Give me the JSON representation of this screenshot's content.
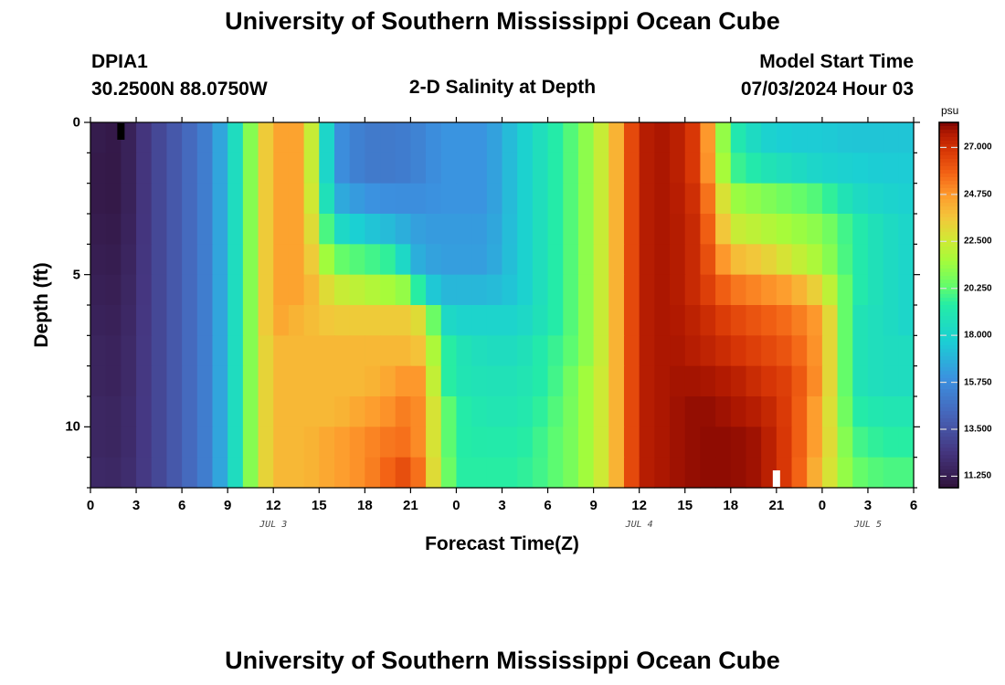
{
  "page": {
    "title": "University of Southern Mississippi Ocean Cube",
    "footer_title": "University of Southern Mississippi Ocean Cube",
    "station_name": "DPIA1",
    "station_coords": "30.2500N  88.0750W",
    "chart_title": "2-D Salinity at Depth",
    "model_start_label": "Model Start Time",
    "model_start_value": "07/03/2024 Hour 03"
  },
  "colors": {
    "background": "#ffffff",
    "axes": "#000000",
    "marker_dark": "#000000",
    "marker_light": "#ffffff"
  },
  "chart_data": {
    "type": "heatmap",
    "title": "2-D Salinity at Depth",
    "xlabel": "Forecast Time(Z)",
    "ylabel": "Depth (ft)",
    "colorbar_label": "psu",
    "x_ticks": [
      "0",
      "3",
      "6",
      "9",
      "12",
      "15",
      "18",
      "21",
      "0",
      "3",
      "6",
      "9",
      "12",
      "15",
      "18",
      "21",
      "0",
      "3",
      "6"
    ],
    "x_date_labels": [
      {
        "text": "JUL 3",
        "hour": 12
      },
      {
        "text": "JUL 4",
        "hour": 36
      },
      {
        "text": "JUL 5",
        "hour": 51
      }
    ],
    "y_ticks": [
      "0",
      "5",
      "10"
    ],
    "xlim_hours": [
      0,
      54
    ],
    "ylim_ft": [
      0,
      12
    ],
    "colorbar_ticks": [
      "27.000",
      "24.750",
      "22.500",
      "20.250",
      "18.000",
      "15.750",
      "13.500",
      "11.250"
    ],
    "colorbar_range": [
      10.7,
      28.2
    ],
    "depth_levels_ft": [
      0.5,
      1.5,
      2.5,
      3.5,
      4.5,
      5.5,
      6.5,
      7.5,
      8.5,
      9.5,
      10.5,
      11.5
    ],
    "markers": [
      {
        "hour": 2.0,
        "depth_ft": 0.3,
        "color": "dark"
      },
      {
        "hour": 45.0,
        "depth_ft": 11.7,
        "color": "light"
      }
    ],
    "salinity_psu": {
      "description_hours": [
        0,
        2,
        4,
        6,
        8,
        9,
        10,
        11,
        12,
        14,
        16,
        18,
        20,
        21,
        22,
        23,
        24,
        26,
        28,
        30,
        32,
        34,
        36,
        38,
        40,
        42,
        44,
        46,
        48,
        50,
        52,
        54
      ],
      "profiles": [
        [
          11.2,
          11.0,
          12.8,
          14.0,
          15.5,
          17.5,
          19.5,
          22.5,
          24.5,
          24.5,
          16.0,
          15.0,
          15.0,
          15.2,
          15.5,
          16.0,
          16.0,
          16.0,
          17.5,
          19.0,
          20.5,
          23.0,
          27.5,
          27.8,
          26.5,
          19.5,
          18.0,
          17.6,
          17.6,
          17.4,
          17.4,
          17.4
        ],
        [
          11.1,
          11.0,
          12.8,
          14.0,
          15.5,
          17.5,
          19.5,
          22.5,
          24.5,
          24.5,
          16.0,
          15.0,
          15.0,
          15.2,
          15.5,
          16.0,
          16.0,
          16.0,
          17.5,
          19.0,
          20.5,
          23.0,
          27.5,
          27.8,
          26.5,
          20.0,
          19.0,
          18.5,
          18.0,
          17.8,
          17.6,
          17.6
        ],
        [
          11.1,
          11.0,
          12.8,
          14.0,
          15.5,
          17.5,
          19.5,
          22.5,
          24.5,
          24.5,
          16.8,
          16.0,
          15.8,
          15.8,
          15.8,
          16.0,
          16.0,
          16.0,
          17.5,
          19.0,
          20.5,
          23.0,
          27.5,
          27.8,
          26.8,
          21.5,
          21.0,
          20.5,
          20.0,
          18.5,
          18.0,
          17.8
        ],
        [
          11.2,
          11.1,
          12.8,
          14.0,
          15.5,
          17.5,
          19.5,
          22.5,
          24.5,
          24.5,
          18.5,
          17.5,
          17.0,
          16.5,
          16.2,
          16.2,
          16.2,
          16.2,
          17.5,
          19.0,
          20.5,
          23.0,
          27.5,
          27.8,
          27.0,
          22.5,
          22.0,
          21.5,
          21.0,
          19.5,
          18.5,
          18.0
        ],
        [
          11.3,
          11.2,
          12.8,
          14.0,
          15.5,
          17.5,
          19.5,
          22.5,
          24.5,
          24.5,
          20.5,
          20.0,
          19.5,
          17.0,
          16.5,
          16.3,
          16.3,
          16.3,
          17.5,
          19.0,
          20.5,
          23.0,
          27.5,
          27.8,
          27.0,
          24.0,
          23.5,
          22.5,
          21.5,
          19.5,
          18.5,
          18.0
        ],
        [
          11.4,
          11.3,
          12.8,
          14.0,
          15.5,
          17.5,
          19.5,
          22.5,
          24.5,
          24.5,
          22.5,
          22.0,
          21.5,
          21.0,
          18.0,
          17.0,
          17.0,
          17.0,
          17.5,
          19.0,
          20.5,
          23.0,
          27.5,
          27.8,
          27.0,
          25.5,
          25.0,
          24.5,
          23.0,
          19.5,
          18.5,
          18.0
        ],
        [
          11.5,
          11.4,
          12.8,
          14.0,
          15.5,
          17.5,
          19.5,
          22.5,
          24.5,
          24.0,
          23.5,
          23.5,
          23.5,
          23.5,
          22.5,
          18.5,
          18.0,
          18.0,
          18.0,
          19.0,
          20.5,
          23.0,
          27.5,
          27.8,
          27.3,
          26.5,
          26.0,
          25.5,
          24.5,
          19.0,
          18.5,
          18.0
        ],
        [
          11.6,
          11.5,
          12.8,
          14.0,
          15.5,
          17.5,
          19.5,
          22.5,
          24.0,
          24.0,
          24.0,
          24.0,
          24.0,
          24.0,
          23.5,
          20.0,
          19.0,
          18.5,
          18.5,
          19.5,
          20.5,
          23.0,
          27.5,
          27.8,
          27.5,
          27.0,
          26.5,
          26.0,
          24.5,
          19.0,
          18.5,
          18.5
        ],
        [
          11.6,
          11.5,
          12.8,
          14.0,
          15.5,
          17.5,
          19.5,
          22.5,
          24.0,
          24.0,
          24.0,
          24.0,
          24.5,
          25.0,
          24.5,
          20.0,
          19.0,
          18.8,
          18.8,
          19.5,
          21.0,
          23.0,
          27.5,
          27.8,
          27.8,
          27.6,
          27.0,
          26.5,
          24.5,
          19.0,
          18.5,
          18.5
        ],
        [
          11.7,
          11.6,
          12.8,
          14.0,
          15.5,
          17.5,
          19.5,
          22.5,
          24.0,
          24.0,
          24.0,
          24.5,
          25.0,
          25.5,
          24.5,
          21.0,
          19.5,
          19.0,
          19.0,
          19.8,
          21.0,
          23.0,
          27.5,
          27.8,
          28.0,
          27.8,
          27.5,
          26.5,
          24.0,
          19.5,
          19.0,
          19.0
        ],
        [
          11.7,
          11.6,
          12.8,
          14.0,
          15.5,
          17.5,
          19.5,
          22.5,
          24.0,
          24.0,
          24.5,
          25.0,
          25.5,
          25.5,
          24.5,
          21.0,
          19.5,
          19.3,
          19.3,
          20.0,
          21.0,
          23.0,
          27.5,
          27.8,
          28.0,
          28.0,
          27.8,
          26.5,
          24.0,
          20.0,
          19.5,
          19.5
        ],
        [
          11.8,
          11.7,
          12.8,
          14.0,
          15.5,
          17.5,
          19.5,
          22.5,
          24.0,
          24.0,
          24.5,
          25.0,
          26.0,
          26.5,
          24.5,
          21.5,
          19.5,
          19.5,
          19.5,
          20.0,
          21.0,
          23.0,
          27.5,
          27.8,
          28.0,
          28.0,
          27.8,
          26.5,
          23.5,
          20.5,
          20.0,
          20.0
        ]
      ]
    }
  }
}
